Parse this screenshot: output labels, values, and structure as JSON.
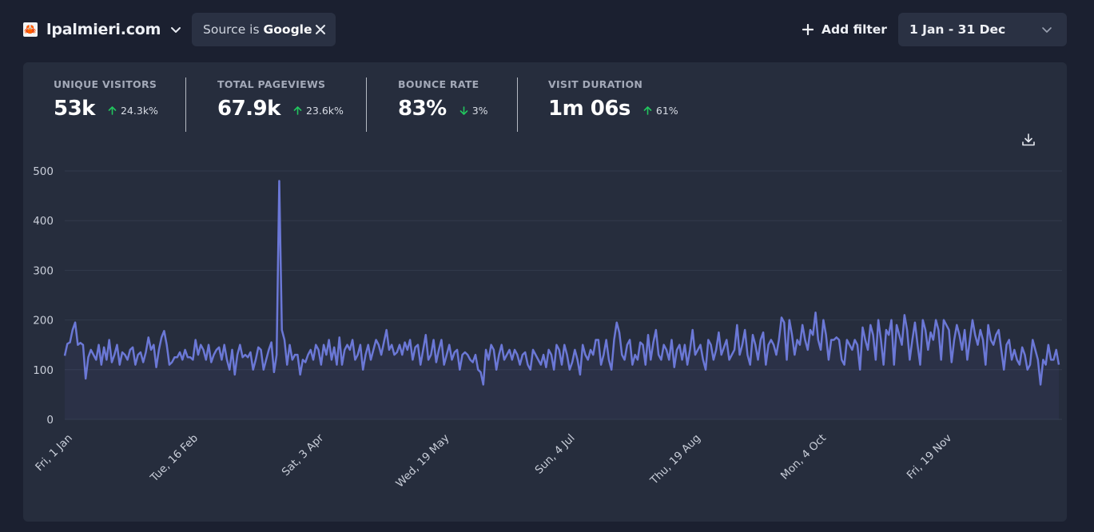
{
  "site": {
    "name": "lpalmieri.com",
    "favicon": "crab-icon"
  },
  "filter": {
    "prefix": "Source is",
    "value": "Google"
  },
  "add_filter_label": "Add filter",
  "date_range": "1 Jan - 31 Dec",
  "stats": [
    {
      "label": "UNIQUE VISITORS",
      "value": "53k",
      "change": "24.3k%",
      "direction": "up"
    },
    {
      "label": "TOTAL PAGEVIEWS",
      "value": "67.9k",
      "change": "23.6k%",
      "direction": "up"
    },
    {
      "label": "BOUNCE RATE",
      "value": "83%",
      "change": "3%",
      "direction": "down"
    },
    {
      "label": "VISIT DURATION",
      "value": "1m 06s",
      "change": "61%",
      "direction": "up"
    }
  ],
  "colors": {
    "line": "#6b78d6",
    "up": "#22c55e",
    "down": "#22c55e",
    "grid": "#323a4d"
  },
  "chart_data": {
    "type": "line",
    "ylim": [
      0,
      500
    ],
    "yticks": [
      0,
      100,
      200,
      300,
      400,
      500
    ],
    "xticks": [
      "Fri, 1 Jan",
      "Tue, 16 Feb",
      "Sat, 3 Apr",
      "Wed, 19 May",
      "Sun, 4 Jul",
      "Thu, 19 Aug",
      "Mon, 4 Oct",
      "Fri, 19 Nov"
    ],
    "xtick_days": [
      0,
      46,
      92,
      138,
      184,
      230,
      276,
      322
    ],
    "days": 365,
    "series": [
      {
        "name": "",
        "values": [
          128,
          152,
          155,
          180,
          195,
          150,
          154,
          150,
          82,
          125,
          140,
          130,
          120,
          150,
          110,
          145,
          120,
          160,
          115,
          130,
          150,
          110,
          135,
          130,
          120,
          140,
          145,
          110,
          130,
          135,
          115,
          135,
          165,
          140,
          150,
          105,
          140,
          165,
          178,
          150,
          110,
          115,
          125,
          125,
          135,
          120,
          140,
          125,
          125,
          120,
          160,
          130,
          150,
          140,
          120,
          150,
          115,
          130,
          140,
          145,
          120,
          150,
          120,
          100,
          140,
          90,
          130,
          150,
          125,
          130,
          125,
          135,
          100,
          120,
          145,
          140,
          100,
          120,
          140,
          155,
          95,
          130,
          480,
          180,
          160,
          110,
          150,
          120,
          130,
          130,
          90,
          120,
          115,
          130,
          140,
          120,
          150,
          140,
          110,
          150,
          130,
          160,
          120,
          145,
          110,
          165,
          110,
          140,
          150,
          140,
          160,
          120,
          130,
          150,
          100,
          130,
          150,
          120,
          140,
          160,
          150,
          130,
          155,
          180,
          140,
          150,
          130,
          135,
          150,
          130,
          155,
          140,
          160,
          120,
          145,
          150,
          110,
          140,
          170,
          120,
          130,
          160,
          115,
          140,
          160,
          110,
          130,
          150,
          120,
          135,
          140,
          100,
          130,
          135,
          130,
          120,
          115,
          130,
          100,
          95,
          70,
          140,
          120,
          150,
          140,
          100,
          130,
          150,
          120,
          130,
          140,
          120,
          140,
          130,
          110,
          130,
          135,
          110,
          100,
          140,
          130,
          120,
          110,
          130,
          105,
          140,
          130,
          100,
          150,
          140,
          110,
          150,
          130,
          100,
          115,
          140,
          120,
          90,
          150,
          130,
          120,
          140,
          130,
          160,
          160,
          110,
          130,
          160,
          120,
          100,
          160,
          195,
          175,
          130,
          120,
          150,
          160,
          110,
          130,
          120,
          155,
          150,
          110,
          170,
          120,
          155,
          180,
          130,
          120,
          150,
          140,
          120,
          160,
          105,
          140,
          150,
          120,
          150,
          110,
          140,
          180,
          130,
          140,
          150,
          120,
          100,
          160,
          150,
          120,
          140,
          175,
          130,
          145,
          160,
          120,
          130,
          140,
          190,
          130,
          150,
          180,
          130,
          110,
          170,
          150,
          120,
          160,
          175,
          110,
          150,
          160,
          150,
          130,
          160,
          205,
          195,
          120,
          200,
          170,
          130,
          160,
          150,
          190,
          160,
          140,
          180,
          170,
          215,
          160,
          140,
          200,
          170,
          120,
          160,
          160,
          165,
          160,
          120,
          110,
          160,
          150,
          140,
          160,
          150,
          100,
          185,
          160,
          140,
          190,
          170,
          120,
          200,
          160,
          110,
          180,
          170,
          200,
          110,
          190,
          170,
          150,
          210,
          180,
          120,
          160,
          195,
          150,
          110,
          200,
          180,
          140,
          175,
          160,
          200,
          180,
          120,
          200,
          190,
          180,
          115,
          160,
          190,
          170,
          140,
          180,
          120,
          160,
          200,
          170,
          150,
          180,
          160,
          110,
          190,
          160,
          150,
          170,
          180,
          140,
          100,
          150,
          160,
          120,
          140,
          120,
          110,
          145,
          130,
          100,
          110,
          160,
          140,
          120,
          70,
          120,
          110,
          150,
          120,
          120,
          140,
          110
        ]
      }
    ]
  }
}
